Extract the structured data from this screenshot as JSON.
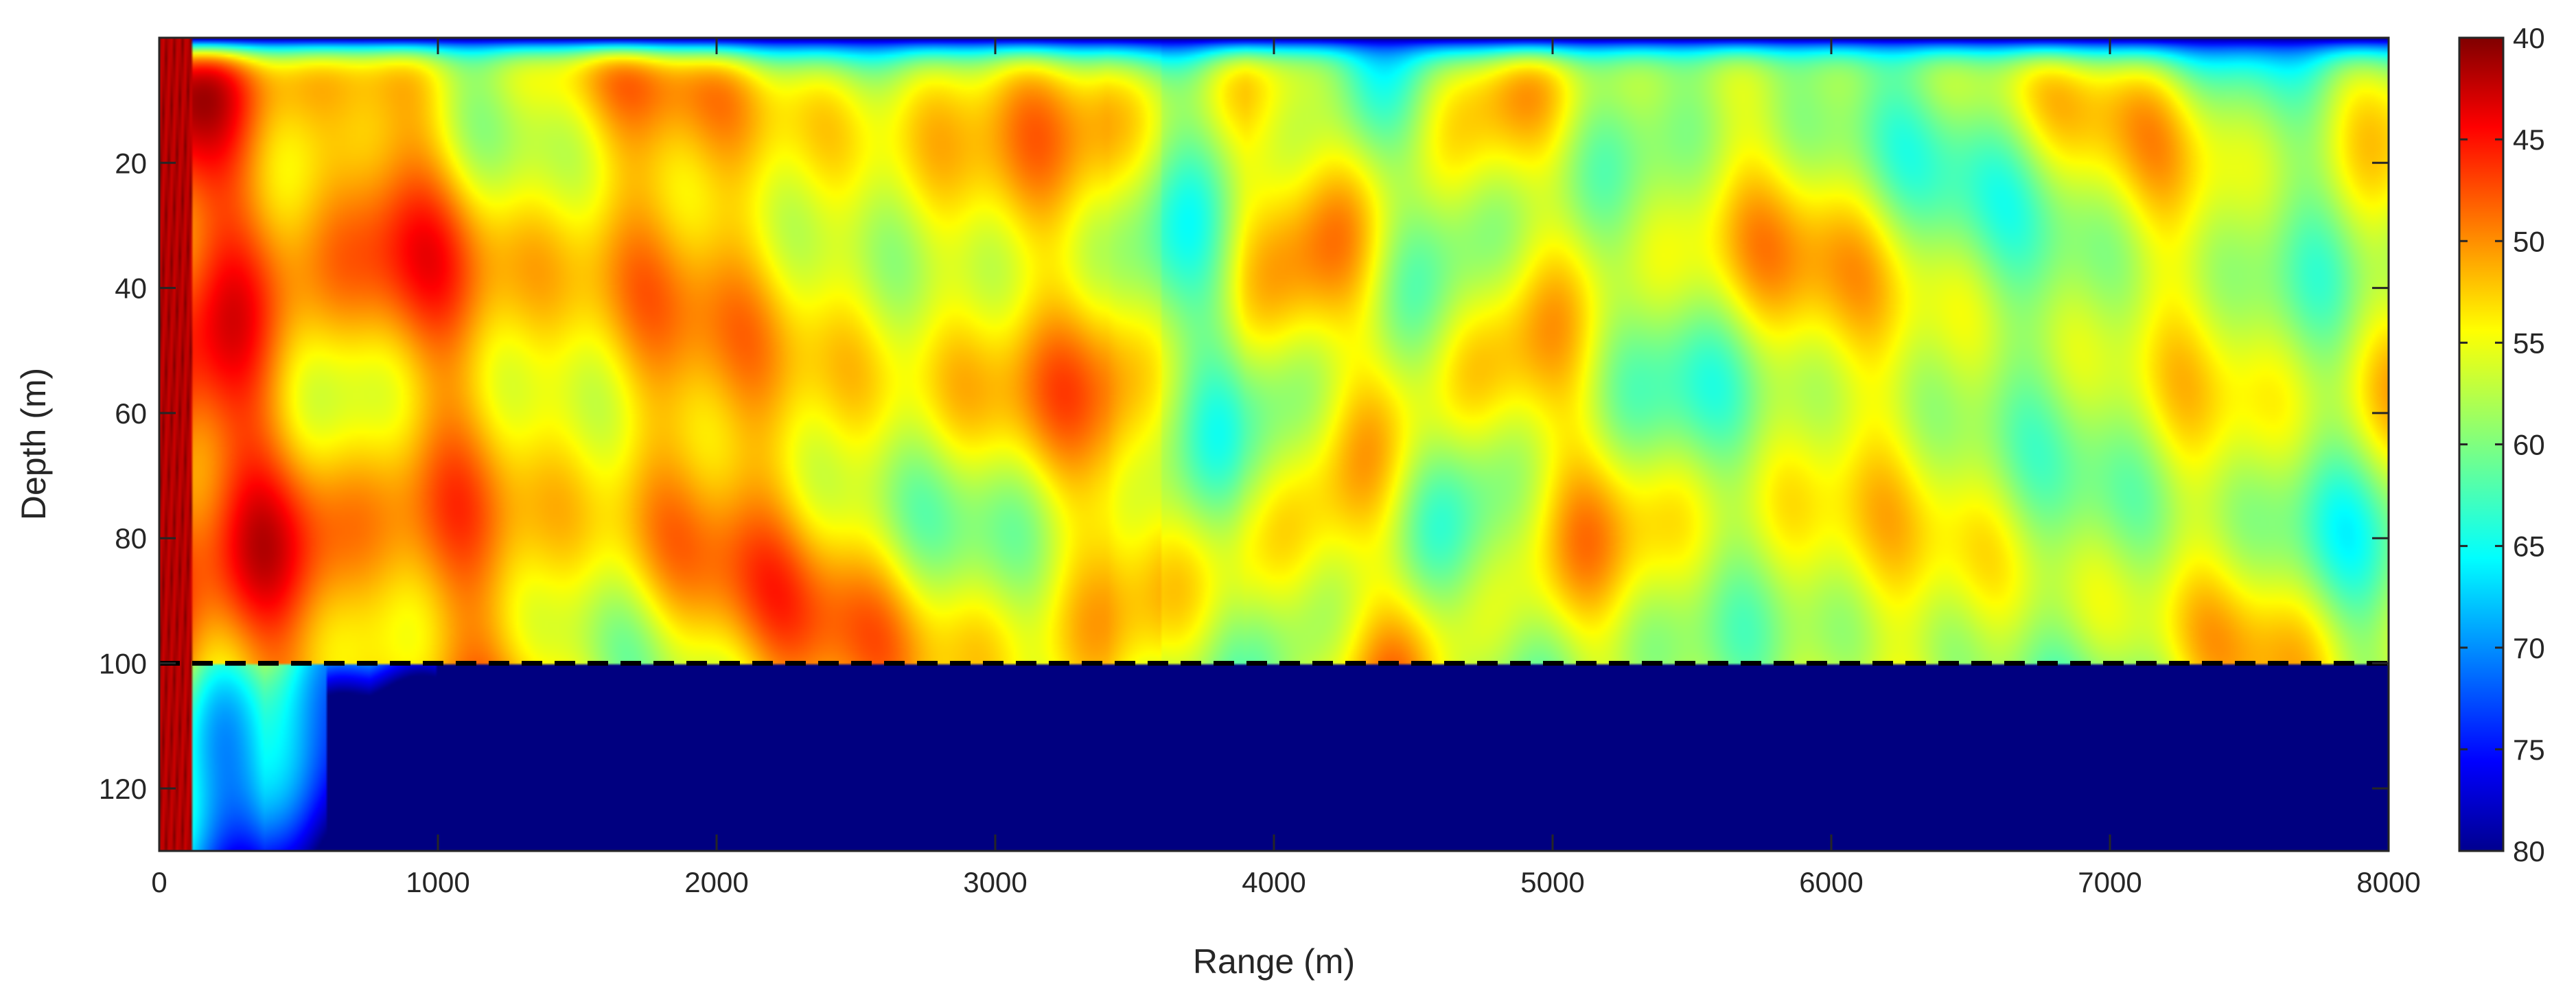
{
  "chart_data": {
    "type": "heatmap",
    "title": "",
    "xlabel": "Range (m)",
    "ylabel": "Depth (m)",
    "x_range": [
      0,
      8000
    ],
    "y_range": [
      0,
      130
    ],
    "y_reversed": true,
    "x_ticks": [
      "0",
      "1000",
      "2000",
      "3000",
      "4000",
      "5000",
      "6000",
      "7000",
      "8000"
    ],
    "y_ticks": [
      "20",
      "40",
      "60",
      "80",
      "100",
      "120"
    ],
    "colormap": "jet",
    "colormap_reversed": true,
    "colorbar_range": [
      40,
      80
    ],
    "colorbar_ticks": [
      "40",
      "45",
      "50",
      "55",
      "60",
      "65",
      "70",
      "75",
      "80"
    ],
    "reference_line": {
      "depth": 100,
      "style": "dashed",
      "color": "#000000"
    },
    "water_depth": 100,
    "grid": false
  }
}
